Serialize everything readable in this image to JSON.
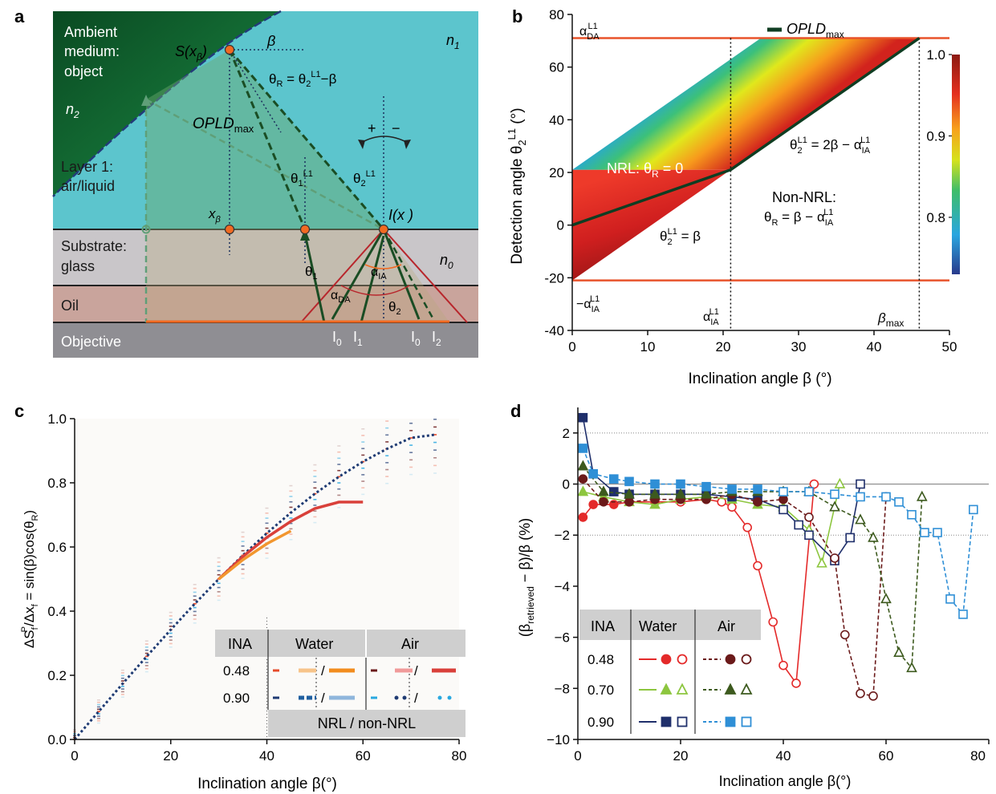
{
  "panel_a": {
    "letter": "a",
    "ambient_line1": "Ambient",
    "ambient_line2": "medium:",
    "ambient_line3": "object",
    "n2": "n",
    "n2_sub": "2",
    "n1": "n",
    "n1_sub": "1",
    "n0": "n",
    "n0_sub": "0",
    "s_point": "S(x",
    "s_point_sub": "β",
    "s_point_close": ")",
    "beta": "β",
    "theta_r_eq": "θ",
    "theta_r_eq_rest": " = θ",
    "theta_r_eq_sup": "L1",
    "theta_r_eq_end": "−β",
    "opld": "OPLD",
    "opld_sub": "max",
    "layer1_line1": "Layer 1:",
    "layer1_line2": "air/liquid",
    "theta1_l1": "θ",
    "theta2_l1": "θ",
    "plus": "+",
    "minus": "−",
    "x_beta": "x",
    "i_x": "I(x )",
    "substrate_line1": "Substrate:",
    "substrate_line2": "glass",
    "theta1": "θ",
    "alpha_ia": "α",
    "alpha_da": "α",
    "theta2": "θ",
    "oil": "Oil",
    "objective": "Objective",
    "i0_a": "I",
    "i1": "I",
    "i0_b": "I",
    "i2": "I",
    "colors": {
      "ambient": "#0d5e2e",
      "layer1": "#5cc5cd",
      "substrate": "#c9c6c9",
      "oil": "#c9a49c",
      "objective": "#8f8e93",
      "ray": "#1a4d24",
      "orange": "#f26a21"
    }
  },
  "panel_b": {
    "letter": "b",
    "ylabel": "Detection angle θ",
    "ylabel_sup": "L1",
    "ylabel_sub": "2",
    "ylabel_unit": " (°)",
    "xlabel": "Inclination angle β (°)",
    "legend": "OPLD",
    "legend_sub": "max",
    "alpha_da": "α",
    "alpha_da_sup": "L1",
    "alpha_da_sub": "DA",
    "minus_alpha_ia": "−α",
    "alpha_ia_x": "α",
    "beta_max": "β",
    "beta_max_sub": "max",
    "nrl": "NRL: θ",
    "nrl_end": " = 0",
    "eq_top": "θ",
    "eq_top_rest": " = 2β − α",
    "eq_bottom": "θ",
    "eq_bottom_rest": " = β",
    "nonnrl_line1": "Non-NRL:",
    "nonnrl_line2": "θ",
    "nonnrl_line2_rest": " = β − α",
    "colorbar_ticks": [
      "1.0",
      "0.9",
      "0.8"
    ]
  },
  "chart_data": [
    {
      "type": "area",
      "title": "",
      "xlabel": "Inclination angle β (°)",
      "ylabel": "Detection angle θ2L1 (°)",
      "xlim": [
        0,
        50
      ],
      "ylim": [
        -40,
        80
      ],
      "x_ticks": [
        0,
        10,
        20,
        30,
        40,
        50
      ],
      "y_ticks": [
        -40,
        -20,
        0,
        20,
        40,
        60,
        80
      ],
      "alpha_da_level": 71,
      "alpha_ia_level": -21,
      "alpha_ia_x": 21,
      "beta_max": 46,
      "opld_max": {
        "x": [
          0,
          21,
          46
        ],
        "y": [
          0,
          21,
          71
        ]
      },
      "colorbar": {
        "min": 0.73,
        "max": 1.0,
        "ticks": [
          1.0,
          0.9,
          0.8
        ]
      }
    },
    {
      "type": "scatter",
      "title": "",
      "xlabel": "Inclination angle β(°)",
      "ylabel": "ΔSfP/Δxf = sin(β)cos(θR)",
      "xlim": [
        0,
        80
      ],
      "ylim": [
        0,
        1.0
      ],
      "x_ticks": [
        0,
        20,
        40,
        60,
        80
      ],
      "y_ticks": [
        0.0,
        0.2,
        0.4,
        0.6,
        0.8,
        1.0
      ],
      "x": [
        0,
        5,
        10,
        15,
        20,
        25,
        30,
        35,
        40,
        45,
        50,
        55,
        60,
        65,
        70,
        75
      ],
      "series": [
        {
          "values": [
            0.0,
            0.087,
            0.174,
            0.259,
            0.342,
            0.423,
            0.5,
            0.574,
            0.643,
            0.707,
            0.766,
            0.819,
            0.866,
            0.906,
            0.94,
            0.95
          ],
          "color": "#1f3b73"
        },
        {
          "values": [
            null,
            null,
            null,
            null,
            null,
            null,
            0.5,
            0.57,
            0.63,
            0.68,
            0.72,
            0.74,
            0.74
          ],
          "color": "#d9403a"
        },
        {
          "values": [
            null,
            null,
            null,
            null,
            null,
            null,
            0.5,
            0.56,
            0.61,
            0.65
          ],
          "color": "#f2962e"
        }
      ]
    },
    {
      "type": "line",
      "title": "",
      "xlabel": "Inclination angle β(°)",
      "ylabel": "(βretrieved − β)/β (%)",
      "xlim": [
        0,
        80
      ],
      "ylim": [
        -10,
        3
      ],
      "x_ticks": [
        0,
        20,
        40,
        60,
        80
      ],
      "y_ticks": [
        -10,
        -8,
        -6,
        -4,
        -2,
        0,
        2
      ],
      "series": [
        {
          "x": [
            1,
            3,
            7,
            10,
            15,
            20,
            25,
            28,
            30,
            33,
            35,
            38,
            40,
            42.5,
            46
          ],
          "values": [
            -1.3,
            -0.8,
            -0.8,
            -0.7,
            -0.7,
            -0.7,
            -0.6,
            -0.7,
            -0.9,
            -1.7,
            -3.2,
            -5.4,
            -7.1,
            -7.8,
            0.0
          ],
          "color": "#e42a2a",
          "dash": false
        },
        {
          "x": [
            1,
            5,
            10,
            15,
            20,
            25,
            30,
            35,
            40,
            45,
            47.5,
            51
          ],
          "values": [
            -0.3,
            -0.5,
            -0.7,
            -0.8,
            -0.6,
            -0.5,
            -0.6,
            -0.8,
            -0.9,
            -1.8,
            -3.1,
            0.0
          ],
          "color": "#8dc63f",
          "dash": false
        },
        {
          "x": [
            1,
            3,
            7,
            10,
            15,
            20,
            25,
            30,
            35,
            40,
            43,
            45,
            50,
            53,
            55,
            57
          ],
          "values": [
            2.6,
            0.4,
            -0.3,
            -0.4,
            -0.4,
            -0.4,
            -0.4,
            -0.5,
            -0.6,
            -1.0,
            -1.6,
            -2.0,
            -3.0,
            -2.1,
            0.0,
            null
          ],
          "color": "#1f2f6b",
          "dash": false
        },
        {
          "x": [
            1,
            5,
            10,
            15,
            20,
            25,
            30,
            35,
            40,
            45,
            50,
            52,
            55,
            57.5,
            60
          ],
          "values": [
            0.2,
            -0.7,
            -0.7,
            -0.6,
            -0.6,
            -0.6,
            -0.4,
            -0.7,
            -0.6,
            -1.3,
            -2.9,
            -5.9,
            -8.2,
            -8.3,
            -0.5
          ],
          "color": "#6b1a1a",
          "dash": true
        },
        {
          "x": [
            1,
            5,
            10,
            15,
            20,
            25,
            30,
            35,
            40,
            45,
            50,
            55,
            57.5,
            60,
            62.5,
            65,
            67
          ],
          "values": [
            0.7,
            -0.3,
            -0.4,
            -0.4,
            -0.4,
            -0.4,
            -0.3,
            -0.3,
            -0.3,
            -0.3,
            -0.9,
            -1.4,
            -2.1,
            -4.5,
            -6.6,
            -7.2,
            -0.5
          ],
          "color": "#3d5a1e",
          "dash": true
        },
        {
          "x": [
            1,
            3,
            7,
            10,
            15,
            20,
            25,
            30,
            35,
            40,
            45,
            50,
            55,
            60,
            62.5,
            65,
            67.5,
            70,
            72.5,
            75,
            77
          ],
          "values": [
            1.4,
            0.4,
            0.2,
            0.1,
            0.0,
            0.0,
            -0.1,
            -0.2,
            -0.2,
            -0.3,
            -0.3,
            -0.4,
            -0.5,
            -0.5,
            -0.7,
            -1.2,
            -1.9,
            -1.9,
            -4.5,
            -5.1,
            -1.0
          ],
          "color": "#2f8fd6",
          "dash": true
        }
      ]
    }
  ],
  "panel_c": {
    "letter": "c",
    "ylabel": "ΔS",
    "ylabel_sup": "P",
    "ylabel_sub": "f",
    "ylabel_mid": "/Δx",
    "ylabel_sub2": "f",
    "ylabel_end": " = sin(β)cos(θ",
    "ylabel_R": "R",
    "ylabel_close": ")",
    "xlabel": "Inclination angle β(°)",
    "legend": {
      "ina": "INA",
      "water": "Water",
      "air": "Air",
      "row1": "0.48",
      "row2": "0.90",
      "slash": "/",
      "footer": "NRL / non-NRL"
    }
  },
  "panel_d": {
    "letter": "d",
    "ylabel": "(β",
    "ylabel_sub": "retrieved",
    "ylabel_end": " − β)/β (%)",
    "xlabel": "Inclination angle β(°)",
    "legend": {
      "ina": "INA",
      "water": "Water",
      "air": "Air",
      "rows": [
        "0.48",
        "0.70",
        "0.90"
      ]
    }
  }
}
